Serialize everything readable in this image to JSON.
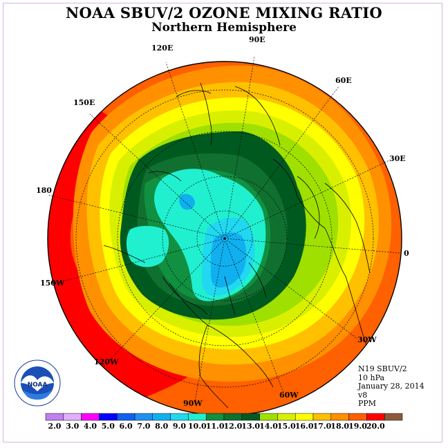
{
  "title": "NOAA SBUV/2 OZONE MIXING RATIO",
  "subtitle": "Northern Hemisphere",
  "info": {
    "instrument": "N19 SBUV/2",
    "pressure": "10 hPa",
    "date": "January 28, 2014",
    "version": "v8",
    "units": "PPM"
  },
  "longitude_labels": [
    "90E",
    "60E",
    "30E",
    "0",
    "30W",
    "60W",
    "90W",
    "120W",
    "150W",
    "180",
    "150E",
    "120E"
  ],
  "colorbar": {
    "levels": [
      "2.0",
      "3.0",
      "4.0",
      "5.0",
      "6.0",
      "7.0",
      "8.0",
      "9.0",
      "10.0",
      "11.0",
      "12.0",
      "13.0",
      "14.0",
      "15.0",
      "16.0",
      "17.0",
      "18.0",
      "19.0",
      "20.0"
    ],
    "colors": [
      "#c080f0",
      "#e0b0ff",
      "#ff00ff",
      "#0000ff",
      "#1060f0",
      "#2090f0",
      "#10b0f0",
      "#20d8f0",
      "#20f0d0",
      "#109040",
      "#107030",
      "#005a20",
      "#a0e000",
      "#d8f000",
      "#ffff00",
      "#ffc000",
      "#ff9000",
      "#ff6000",
      "#ff0000",
      "#8b5a3c"
    ]
  },
  "logo": {
    "text": "NOAA",
    "ring_text": "NATIONAL OCEANIC AND ATMOSPHERIC ADMINISTRATION · U.S. DEPARTMENT OF COMMERCE"
  },
  "colors": {
    "c18": "#ff0000",
    "c17": "#ff6000",
    "c16": "#ff9000",
    "c15": "#ffc000",
    "c14": "#ffff00",
    "c13": "#d8f000",
    "c12": "#a0e000",
    "c11": "#005a20",
    "c10": "#107030",
    "c9": "#109040",
    "c8": "#20f0d0",
    "c7": "#20d8f0",
    "c6": "#10b0f0",
    "c5": "#2090f0"
  }
}
